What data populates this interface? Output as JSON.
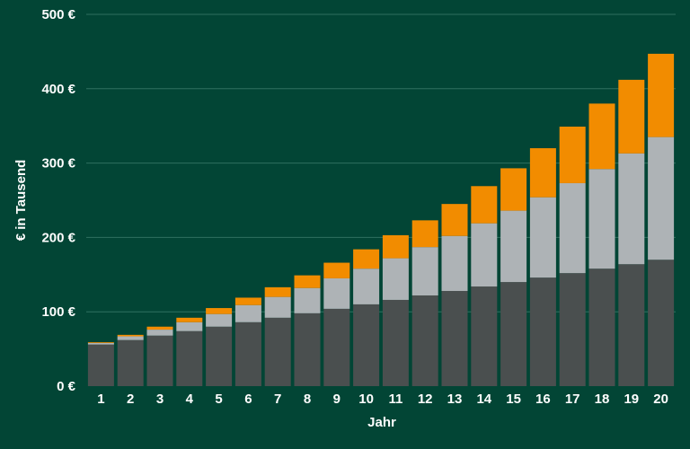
{
  "chart_data": {
    "type": "bar",
    "stacked": true,
    "title": "",
    "xlabel": "Jahr",
    "ylabel": "€ in Tausend",
    "ylim": [
      0,
      500
    ],
    "y_ticks": [
      "0 €",
      "100 €",
      "200 €",
      "300 €",
      "400 €",
      "500 €"
    ],
    "y_tick_values": [
      0,
      100,
      200,
      300,
      400,
      500
    ],
    "grid": true,
    "legend": "none",
    "categories": [
      "1",
      "2",
      "3",
      "4",
      "5",
      "6",
      "7",
      "8",
      "9",
      "10",
      "11",
      "12",
      "13",
      "14",
      "15",
      "16",
      "17",
      "18",
      "19",
      "20"
    ],
    "series": [
      {
        "color": "#4a4f4f",
        "values": [
          56,
          62,
          68,
          74,
          80,
          86,
          92,
          98,
          104,
          110,
          116,
          122,
          128,
          134,
          140,
          146,
          152,
          158,
          164,
          170
        ]
      },
      {
        "color": "#aeb3b6",
        "values": [
          2,
          5,
          8,
          12,
          17,
          23,
          28,
          34,
          41,
          48,
          56,
          65,
          74,
          85,
          96,
          108,
          121,
          134,
          149,
          165
        ]
      },
      {
        "color": "#f28c00",
        "values": [
          1,
          2,
          4,
          6,
          8,
          10,
          13,
          17,
          21,
          26,
          31,
          36,
          43,
          50,
          57,
          66,
          76,
          88,
          99,
          112
        ]
      }
    ]
  },
  "colors": {
    "background": "#024535",
    "grid": "#2f7060",
    "text": "#ffffff"
  }
}
